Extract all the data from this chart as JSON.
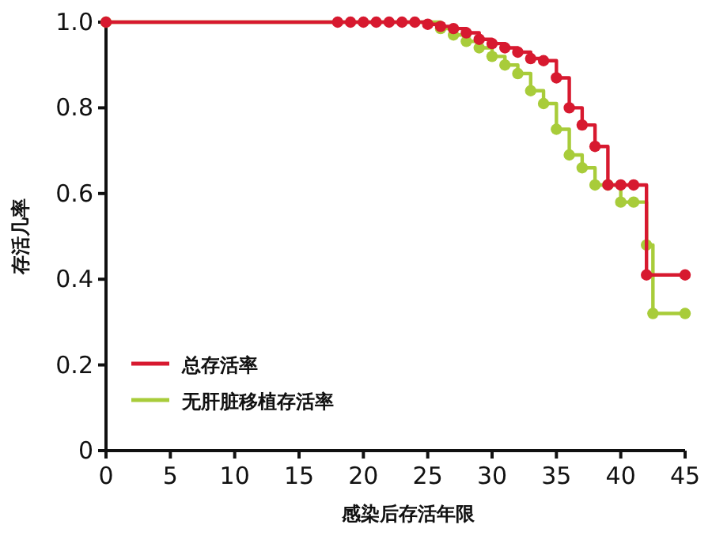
{
  "chart_data": {
    "type": "step",
    "xlabel": "感染后存活年限",
    "ylabel": "存活几率",
    "xlim": [
      0,
      45
    ],
    "xticks": [
      0,
      5,
      10,
      15,
      20,
      25,
      30,
      35,
      40,
      45
    ],
    "ylim": [
      0,
      1
    ],
    "yticks": [
      0,
      0.2,
      0.4,
      0.6,
      0.8,
      {
        "value": 1,
        "label": "1.0"
      }
    ],
    "legend": "bottom left",
    "marker": "circle",
    "line_style": "solid",
    "series": [
      {
        "name": "总存活率",
        "color": "#d7192f",
        "x": [
          0,
          18,
          19,
          20,
          21,
          22,
          23,
          24,
          25,
          26,
          27,
          28,
          29,
          30,
          31,
          32,
          33,
          34,
          35,
          36,
          37,
          38,
          39,
          40,
          41,
          42,
          45
        ],
        "values": [
          1,
          1,
          1,
          1,
          1,
          1,
          1,
          1,
          0.995,
          0.99,
          0.985,
          0.975,
          0.96,
          0.95,
          0.94,
          0.93,
          0.915,
          0.91,
          0.87,
          0.8,
          0.76,
          0.71,
          0.62,
          0.62,
          0.62,
          0.41,
          0.41
        ]
      },
      {
        "name": "无肝脏移植存活率",
        "color": "#a8cc3a",
        "x": [
          0,
          26,
          27,
          28,
          29,
          30,
          31,
          32,
          33,
          34,
          35,
          36,
          37,
          38,
          39,
          40,
          41,
          42,
          42.5,
          45
        ],
        "values": [
          1,
          0.985,
          0.97,
          0.955,
          0.94,
          0.92,
          0.9,
          0.88,
          0.84,
          0.81,
          0.75,
          0.69,
          0.66,
          0.62,
          0.62,
          0.58,
          0.58,
          0.48,
          0.32,
          0.32
        ]
      }
    ]
  }
}
